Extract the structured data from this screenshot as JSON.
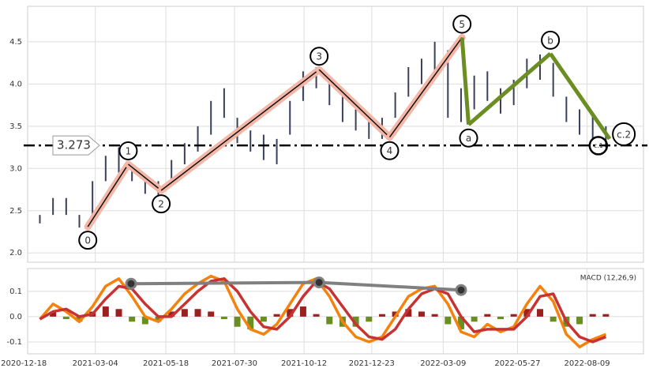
{
  "chart_data": [
    {
      "type": "hilo",
      "x": [
        "2021-01-04",
        "2021-01-18",
        "2021-02-01",
        "2021-02-15",
        "2021-03-01",
        "2021-03-15",
        "2021-03-29",
        "2021-04-12",
        "2021-04-26",
        "2021-05-10",
        "2021-05-24",
        "2021-06-07",
        "2021-06-21",
        "2021-07-05",
        "2021-07-19",
        "2021-08-02",
        "2021-08-16",
        "2021-08-30",
        "2021-09-13",
        "2021-09-27",
        "2021-10-11",
        "2021-10-25",
        "2021-11-08",
        "2021-11-22",
        "2021-12-06",
        "2021-12-20",
        "2022-01-03",
        "2022-01-17",
        "2022-01-31",
        "2022-02-14",
        "2022-02-28",
        "2022-03-14",
        "2022-03-28",
        "2022-04-11",
        "2022-04-25",
        "2022-05-09",
        "2022-05-23",
        "2022-06-06",
        "2022-06-20",
        "2022-07-04",
        "2022-07-18",
        "2022-08-01",
        "2022-08-15",
        "2022-08-29"
      ],
      "low": [
        2.35,
        2.45,
        2.45,
        2.3,
        2.45,
        2.85,
        2.95,
        2.85,
        2.7,
        2.65,
        2.85,
        3.05,
        3.2,
        3.4,
        3.6,
        3.3,
        3.2,
        3.1,
        3.05,
        3.4,
        3.8,
        3.95,
        3.75,
        3.55,
        3.45,
        3.35,
        3.35,
        3.6,
        3.85,
        4.0,
        4.15,
        3.6,
        3.55,
        3.7,
        3.8,
        3.65,
        3.75,
        3.95,
        4.05,
        3.85,
        3.55,
        3.4,
        3.35,
        3.25
      ],
      "high": [
        2.45,
        2.65,
        2.65,
        2.45,
        2.85,
        3.15,
        3.25,
        3.05,
        2.9,
        2.85,
        3.1,
        3.3,
        3.5,
        3.8,
        3.95,
        3.6,
        3.45,
        3.4,
        3.35,
        3.8,
        4.15,
        4.2,
        4.05,
        3.85,
        3.7,
        3.6,
        3.6,
        3.9,
        4.2,
        4.3,
        4.5,
        4.4,
        3.95,
        4.1,
        4.15,
        3.95,
        4.05,
        4.3,
        4.35,
        4.25,
        3.85,
        3.7,
        3.65,
        3.5
      ],
      "color": "#3a3f5c",
      "ylim": [
        1.89,
        4.92
      ],
      "yticks": [
        {
          "value": 2,
          "label": "2.0"
        },
        2.5,
        {
          "value": 3,
          "label": "3.0"
        },
        3.5,
        {
          "value": 4,
          "label": "4.0"
        },
        4.5
      ],
      "grid": true,
      "level": 3.273,
      "waves": {
        "x": [
          "2021-02-24",
          "2021-04-08",
          "2021-05-13",
          "2021-10-28",
          "2022-01-11",
          "2022-03-29",
          "2022-04-05",
          "2022-07-01",
          "2022-09-02"
        ],
        "values": [
          2.31,
          3.05,
          2.74,
          4.17,
          3.37,
          4.55,
          3.52,
          4.36,
          3.35
        ],
        "labels": [
          "0",
          "1",
          "2",
          "3",
          "4",
          "5",
          "a",
          "b",
          "c.2"
        ],
        "impulse_color": "#f4b6a6",
        "correction_color": "#6b8e23"
      },
      "annotations": [
        {
          "text": "c.1",
          "x": "2022-08-21",
          "y": 3.27
        }
      ]
    },
    {
      "type": "line",
      "title": "MACD (12,26,9)",
      "x": [
        "2021-01-04",
        "2021-01-18",
        "2021-02-01",
        "2021-02-15",
        "2021-03-01",
        "2021-03-15",
        "2021-03-29",
        "2021-04-12",
        "2021-04-26",
        "2021-05-10",
        "2021-05-24",
        "2021-06-07",
        "2021-06-21",
        "2021-07-05",
        "2021-07-19",
        "2021-08-02",
        "2021-08-16",
        "2021-08-30",
        "2021-09-13",
        "2021-09-27",
        "2021-10-11",
        "2021-10-25",
        "2021-11-08",
        "2021-11-22",
        "2021-12-06",
        "2021-12-20",
        "2022-01-03",
        "2022-01-17",
        "2022-01-31",
        "2022-02-14",
        "2022-02-28",
        "2022-03-14",
        "2022-03-28",
        "2022-04-11",
        "2022-04-25",
        "2022-05-09",
        "2022-05-23",
        "2022-06-06",
        "2022-06-20",
        "2022-07-04",
        "2022-07-18",
        "2022-08-01",
        "2022-08-15",
        "2022-08-29"
      ],
      "series": [
        {
          "color": "#f5820d",
          "values": [
            -0.01,
            0.05,
            0.02,
            -0.02,
            0.04,
            0.12,
            0.15,
            0.08,
            0.0,
            -0.02,
            0.03,
            0.09,
            0.13,
            0.16,
            0.14,
            0.03,
            -0.05,
            -0.07,
            -0.03,
            0.05,
            0.13,
            0.15,
            0.08,
            -0.02,
            -0.08,
            -0.1,
            -0.08,
            0.0,
            0.08,
            0.11,
            0.12,
            0.05,
            -0.06,
            -0.08,
            -0.03,
            -0.06,
            -0.04,
            0.05,
            0.12,
            0.06,
            -0.07,
            -0.12,
            -0.09,
            -0.07
          ]
        },
        {
          "color": "#c83232",
          "values": [
            -0.01,
            0.02,
            0.03,
            0.0,
            0.01,
            0.07,
            0.12,
            0.11,
            0.05,
            0.0,
            0.0,
            0.05,
            0.1,
            0.14,
            0.15,
            0.1,
            0.02,
            -0.04,
            -0.05,
            0.0,
            0.08,
            0.14,
            0.11,
            0.04,
            -0.03,
            -0.08,
            -0.09,
            -0.05,
            0.03,
            0.09,
            0.11,
            0.09,
            0.0,
            -0.06,
            -0.05,
            -0.05,
            -0.05,
            0.0,
            0.08,
            0.09,
            -0.02,
            -0.08,
            -0.1,
            -0.08
          ]
        }
      ],
      "histogram": {
        "values": [
          0.0,
          0.02,
          -0.01,
          -0.02,
          0.02,
          0.04,
          0.03,
          -0.02,
          -0.03,
          -0.02,
          0.02,
          0.03,
          0.03,
          0.02,
          -0.01,
          -0.04,
          -0.05,
          -0.02,
          0.01,
          0.03,
          0.04,
          0.01,
          -0.03,
          -0.04,
          -0.04,
          -0.02,
          0.01,
          0.02,
          0.03,
          0.02,
          0.01,
          -0.03,
          -0.05,
          -0.02,
          0.01,
          -0.01,
          0.01,
          0.03,
          0.03,
          -0.02,
          -0.04,
          -0.03,
          0.01,
          0.01
        ],
        "up_color": "#9b2020",
        "down_color": "#6b8e23"
      },
      "divergence": {
        "x": [
          "2021-04-11",
          "2021-10-28",
          "2022-03-28"
        ],
        "values": [
          0.13,
          0.135,
          0.105
        ],
        "color": "#808080"
      },
      "xlim": [
        "2020-12-22",
        "2022-10-08"
      ],
      "xticks": [
        "2020-12-18",
        "2021-03-04",
        "2021-05-18",
        "2021-07-30",
        "2021-10-12",
        "2021-12-23",
        "2022-03-09",
        "2022-05-27",
        "2022-08-09"
      ],
      "ylim": [
        -0.147,
        0.19
      ],
      "yticks": [
        -0.1,
        {
          "value": 0,
          "label": "0.0"
        },
        0.1
      ],
      "grid": true
    }
  ]
}
